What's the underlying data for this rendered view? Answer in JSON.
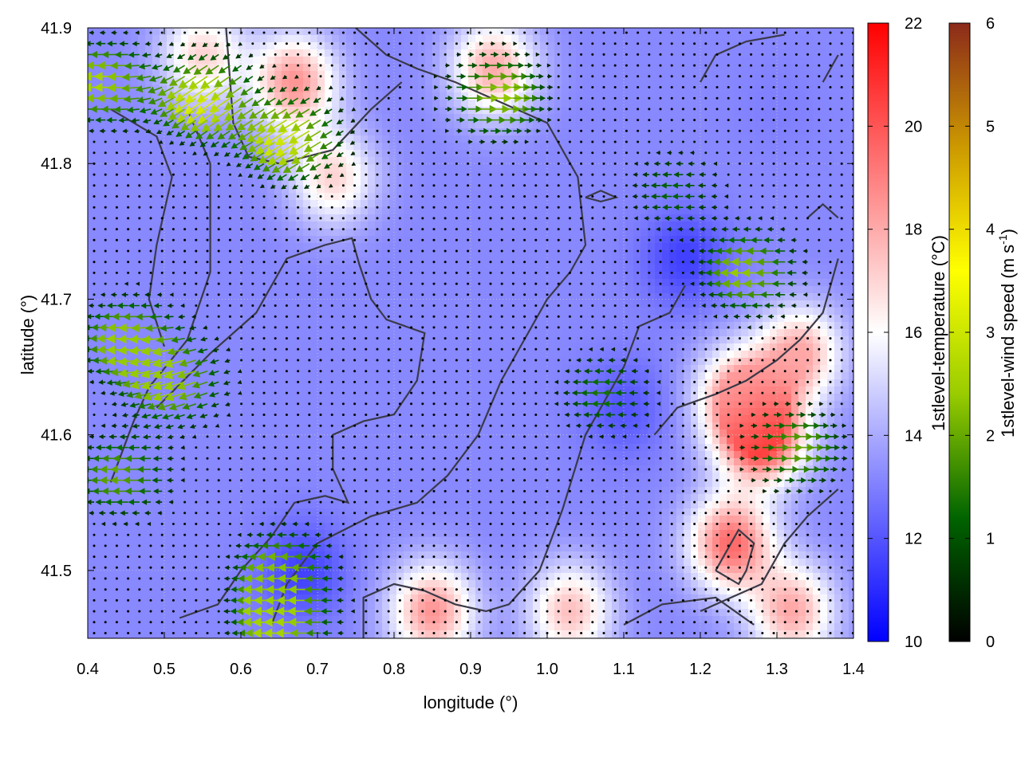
{
  "chart_data": {
    "type": "heatmap",
    "xlabel": "longitude (°)",
    "ylabel": "latitude (°)",
    "xlim": [
      0.4,
      1.4
    ],
    "ylim": [
      41.45,
      41.9
    ],
    "x_ticks": [
      "0.4",
      "0.5",
      "0.6",
      "0.7",
      "0.8",
      "0.9",
      "1.0",
      "1.1",
      "1.2",
      "1.3",
      "1.4"
    ],
    "y_ticks": [
      "41.5",
      "41.6",
      "41.7",
      "41.8",
      "41.9"
    ],
    "grid": true,
    "temperature_colorbar": {
      "label": "1stlevel-temperature (°C)",
      "range": [
        10,
        22
      ],
      "ticks": [
        "10",
        "12",
        "14",
        "16",
        "18",
        "20",
        "22"
      ],
      "colors": [
        "#0000ff",
        "#ffffff",
        "#ff0000"
      ]
    },
    "wind_colorbar": {
      "label_main": "1stlevel-wind speed (m s",
      "label_sup": "-1",
      "label_end": ")",
      "range": [
        0,
        6
      ],
      "ticks": [
        "0",
        "1",
        "2",
        "3",
        "4",
        "5",
        "6"
      ],
      "colors": [
        "#000000",
        "#006400",
        "#99cc00",
        "#ffff00",
        "#cc9900",
        "#8b2a1a"
      ]
    },
    "temperature_regions": [
      {
        "lon": 0.67,
        "lat": 41.86,
        "temp": 18.5
      },
      {
        "lon": 0.93,
        "lat": 41.87,
        "temp": 18
      },
      {
        "lon": 0.55,
        "lat": 41.88,
        "temp": 17
      },
      {
        "lon": 0.72,
        "lat": 41.79,
        "temp": 17
      },
      {
        "lon": 1.28,
        "lat": 41.6,
        "temp": 21
      },
      {
        "lon": 1.24,
        "lat": 41.52,
        "temp": 19.5
      },
      {
        "lon": 1.25,
        "lat": 41.63,
        "temp": 18
      },
      {
        "lon": 1.33,
        "lat": 41.66,
        "temp": 18
      },
      {
        "lon": 0.85,
        "lat": 41.47,
        "temp": 18.5
      },
      {
        "lon": 1.03,
        "lat": 41.47,
        "temp": 17.5
      },
      {
        "lon": 1.32,
        "lat": 41.47,
        "temp": 18
      },
      {
        "lon": 0.68,
        "lat": 41.5,
        "temp": 11.5
      },
      {
        "lon": 1.18,
        "lat": 41.73,
        "temp": 11.5
      },
      {
        "lon": 1.1,
        "lat": 41.62,
        "temp": 12
      },
      {
        "lon": 1.3,
        "lat": 41.84,
        "temp": 13
      }
    ],
    "wind_regions": [
      {
        "lon": 0.43,
        "lat": 41.86,
        "u": -2.6,
        "v": 0.0
      },
      {
        "lon": 0.46,
        "lat": 41.67,
        "u": -2.4,
        "v": 0.0
      },
      {
        "lon": 0.56,
        "lat": 41.85,
        "u": -2.6,
        "v": -1.8
      },
      {
        "lon": 0.67,
        "lat": 41.82,
        "u": -2.6,
        "v": -1.6
      },
      {
        "lon": 0.52,
        "lat": 41.64,
        "u": -2.3,
        "v": -0.8
      },
      {
        "lon": 0.45,
        "lat": 41.57,
        "u": -2.0,
        "v": 0.0
      },
      {
        "lon": 0.66,
        "lat": 41.5,
        "u": -2.2,
        "v": 0.0
      },
      {
        "lon": 0.66,
        "lat": 41.46,
        "u": -2.6,
        "v": 0.0
      },
      {
        "lon": 0.93,
        "lat": 41.85,
        "u": 2.4,
        "v": 0.0
      },
      {
        "lon": 1.27,
        "lat": 41.72,
        "u": -2.4,
        "v": 0.0
      },
      {
        "lon": 1.32,
        "lat": 41.59,
        "u": 2.0,
        "v": 0.0
      },
      {
        "lon": 1.08,
        "lat": 41.63,
        "u": -1.4,
        "v": 0.0
      },
      {
        "lon": 1.17,
        "lat": 41.78,
        "u": -1.2,
        "v": 0.0
      },
      {
        "lon": 0.75,
        "lat": 41.73,
        "u": 0.0,
        "v": -0.1
      }
    ],
    "boundaries": [
      [
        [
          0.43,
          41.565
        ],
        [
          0.46,
          41.61
        ],
        [
          0.48,
          41.635
        ],
        [
          0.53,
          41.67
        ],
        [
          0.56,
          41.72
        ],
        [
          0.56,
          41.8
        ],
        [
          0.53,
          41.84
        ]
      ],
      [
        [
          0.49,
          41.62
        ],
        [
          0.56,
          41.66
        ],
        [
          0.62,
          41.69
        ],
        [
          0.66,
          41.73
        ],
        [
          0.71,
          41.74
        ],
        [
          0.745,
          41.745
        ],
        [
          0.755,
          41.725
        ],
        [
          0.77,
          41.7
        ],
        [
          0.79,
          41.685
        ],
        [
          0.84,
          41.675
        ],
        [
          0.83,
          41.64
        ],
        [
          0.8,
          41.615
        ],
        [
          0.76,
          41.61
        ],
        [
          0.72,
          41.6
        ],
        [
          0.72,
          41.575
        ],
        [
          0.74,
          41.55
        ],
        [
          0.71,
          41.555
        ],
        [
          0.67,
          41.55
        ],
        [
          0.64,
          41.525
        ],
        [
          0.6,
          41.5
        ],
        [
          0.57,
          41.475
        ],
        [
          0.52,
          41.465
        ]
      ],
      [
        [
          0.43,
          41.84
        ],
        [
          0.49,
          41.82
        ],
        [
          0.51,
          41.79
        ],
        [
          0.49,
          41.74
        ],
        [
          0.48,
          41.7
        ],
        [
          0.5,
          41.665
        ]
      ],
      [
        [
          0.58,
          41.905
        ],
        [
          0.59,
          41.83
        ],
        [
          0.61,
          41.805
        ],
        [
          0.65,
          41.8
        ],
        [
          0.72,
          41.81
        ],
        [
          0.77,
          41.84
        ],
        [
          0.81,
          41.86
        ]
      ],
      [
        [
          0.64,
          41.46
        ],
        [
          0.66,
          41.49
        ],
        [
          0.7,
          41.52
        ],
        [
          0.77,
          41.54
        ],
        [
          0.83,
          41.55
        ],
        [
          0.87,
          41.57
        ],
        [
          0.91,
          41.6
        ],
        [
          0.94,
          41.64
        ],
        [
          0.97,
          41.67
        ],
        [
          1.0,
          41.7
        ],
        [
          1.03,
          41.72
        ],
        [
          1.05,
          41.74
        ],
        [
          1.04,
          41.79
        ],
        [
          1.0,
          41.83
        ],
        [
          0.92,
          41.85
        ],
        [
          0.88,
          41.86
        ],
        [
          0.83,
          41.87
        ],
        [
          0.79,
          41.88
        ],
        [
          0.75,
          41.9
        ]
      ],
      [
        [
          0.76,
          41.45
        ],
        [
          0.76,
          41.48
        ],
        [
          0.8,
          41.49
        ],
        [
          0.84,
          41.485
        ],
        [
          0.88,
          41.475
        ],
        [
          0.92,
          41.47
        ],
        [
          0.95,
          41.475
        ],
        [
          0.99,
          41.5
        ],
        [
          1.02,
          41.545
        ],
        [
          1.05,
          41.6
        ],
        [
          1.1,
          41.65
        ],
        [
          1.12,
          41.68
        ],
        [
          1.16,
          41.69
        ],
        [
          1.18,
          41.71
        ]
      ],
      [
        [
          0.76,
          41.905
        ],
        [
          0.8,
          41.91
        ]
      ],
      [
        [
          1.05,
          41.775
        ],
        [
          1.07,
          41.78
        ],
        [
          1.09,
          41.775
        ],
        [
          1.07,
          41.772
        ],
        [
          1.05,
          41.775
        ]
      ],
      [
        [
          1.2,
          41.86
        ],
        [
          1.22,
          41.88
        ],
        [
          1.26,
          41.89
        ],
        [
          1.31,
          41.895
        ]
      ],
      [
        [
          1.36,
          41.86
        ],
        [
          1.38,
          41.88
        ]
      ],
      [
        [
          1.34,
          41.76
        ],
        [
          1.36,
          41.77
        ],
        [
          1.38,
          41.76
        ]
      ],
      [
        [
          1.2,
          41.47
        ],
        [
          1.24,
          41.48
        ],
        [
          1.28,
          41.49
        ],
        [
          1.31,
          41.52
        ],
        [
          1.34,
          41.54
        ],
        [
          1.38,
          41.56
        ]
      ],
      [
        [
          1.22,
          41.5
        ],
        [
          1.25,
          41.49
        ],
        [
          1.26,
          41.5
        ],
        [
          1.27,
          41.52
        ],
        [
          1.25,
          41.53
        ],
        [
          1.22,
          41.5
        ]
      ],
      [
        [
          1.1,
          41.46
        ],
        [
          1.15,
          41.475
        ],
        [
          1.22,
          41.48
        ],
        [
          1.27,
          41.46
        ]
      ],
      [
        [
          1.14,
          41.6
        ],
        [
          1.17,
          41.62
        ],
        [
          1.22,
          41.63
        ],
        [
          1.26,
          41.64
        ],
        [
          1.3,
          41.655
        ],
        [
          1.33,
          41.67
        ],
        [
          1.36,
          41.69
        ],
        [
          1.38,
          41.73
        ]
      ]
    ]
  }
}
